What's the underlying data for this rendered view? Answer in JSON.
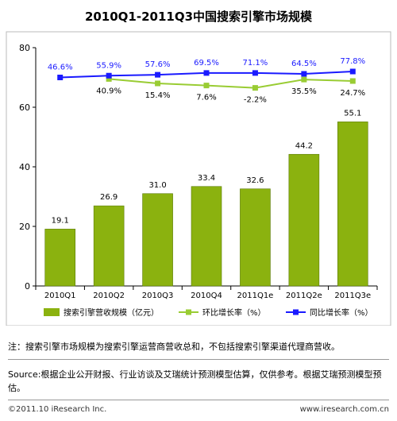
{
  "header": {
    "title": "2010Q1-2011Q3中国搜索引擎市场规模"
  },
  "chart_data": {
    "type": "bar",
    "categories": [
      "2010Q1",
      "2010Q2",
      "2010Q3",
      "2010Q4",
      "2011Q1e",
      "2011Q2e",
      "2011Q3e"
    ],
    "ylim": [
      0,
      80
    ],
    "yticks": [
      0,
      20,
      40,
      60,
      80
    ],
    "series": [
      {
        "name": "搜索引擎营收规模（亿元）",
        "type": "bar",
        "values": [
          19.1,
          26.9,
          31.0,
          33.4,
          32.6,
          44.2,
          55.1
        ],
        "labels": [
          "19.1",
          "26.9",
          "31.0",
          "33.4",
          "32.6",
          "44.2",
          "55.1"
        ],
        "color": "#8bb20f"
      },
      {
        "name": "环比增长率（%）",
        "type": "line",
        "values": [
          null,
          69.5,
          68.0,
          67.3,
          66.5,
          69.3,
          68.8
        ],
        "labels": [
          "",
          "40.9%",
          "15.4%",
          "7.6%",
          "-2.2%",
          "35.5%",
          "24.7%"
        ],
        "color": "#99cc33"
      },
      {
        "name": "同比增长率（%）",
        "type": "line",
        "values": [
          70.0,
          70.6,
          70.9,
          71.5,
          71.5,
          71.2,
          72.0
        ],
        "labels": [
          "46.6%",
          "55.9%",
          "57.6%",
          "69.5%",
          "71.1%",
          "64.5%",
          "77.8%"
        ],
        "color": "#1a1aff"
      }
    ],
    "grid": false,
    "legend": "bottom"
  },
  "note": "注：搜索引擎市场规模为搜索引擎运营商营收总和，不包括搜索引擎渠道代理商营收。",
  "source": "Source:根据企业公开财报、行业访谈及艾瑞统计预测模型估算，仅供参考。根据艾瑞预测模型预估。",
  "footer": {
    "copyright": "©2011.10 iResearch Inc.",
    "website": "www.iresearch.com.cn"
  }
}
